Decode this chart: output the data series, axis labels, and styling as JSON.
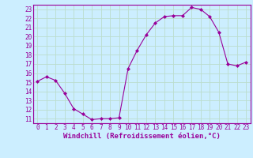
{
  "x": [
    0,
    1,
    2,
    3,
    4,
    5,
    6,
    7,
    8,
    9,
    10,
    11,
    12,
    13,
    14,
    15,
    16,
    17,
    18,
    19,
    20,
    21,
    22,
    23
  ],
  "y": [
    15.1,
    15.6,
    15.2,
    13.8,
    12.1,
    11.5,
    10.9,
    11.0,
    11.0,
    11.1,
    16.5,
    18.5,
    20.2,
    21.5,
    22.2,
    22.3,
    22.3,
    23.2,
    23.0,
    22.2,
    20.5,
    17.0,
    16.8,
    17.2
  ],
  "line_color": "#990099",
  "marker": "D",
  "marker_size": 2,
  "bg_color": "#cceeff",
  "grid_color": "#aaddcc",
  "xlabel": "Windchill (Refroidissement éolien,°C)",
  "xlim": [
    -0.5,
    23.5
  ],
  "ylim": [
    10.5,
    23.5
  ],
  "yticks": [
    11,
    12,
    13,
    14,
    15,
    16,
    17,
    18,
    19,
    20,
    21,
    22,
    23
  ],
  "xticks": [
    0,
    1,
    2,
    3,
    4,
    5,
    6,
    7,
    8,
    9,
    10,
    11,
    12,
    13,
    14,
    15,
    16,
    17,
    18,
    19,
    20,
    21,
    22,
    23
  ],
  "tick_label_size": 5.5,
  "xlabel_size": 6.5
}
